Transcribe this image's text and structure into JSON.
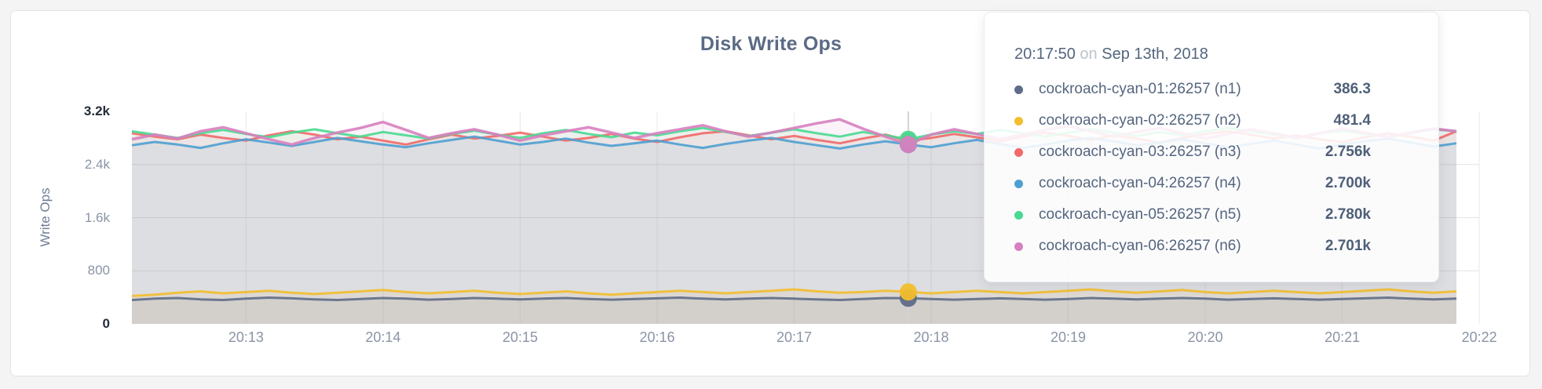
{
  "tooltip": {
    "time": "20:17:50",
    "connector": "on",
    "date": "Sep 13th, 2018",
    "rows": [
      {
        "label": "cockroach-cyan-01:26257 (n1)",
        "value": "386.3"
      },
      {
        "label": "cockroach-cyan-02:26257 (n2)",
        "value": "481.4"
      },
      {
        "label": "cockroach-cyan-03:26257 (n3)",
        "value": "2.756k"
      },
      {
        "label": "cockroach-cyan-04:26257 (n4)",
        "value": "2.700k"
      },
      {
        "label": "cockroach-cyan-05:26257 (n5)",
        "value": "2.780k"
      },
      {
        "label": "cockroach-cyan-06:26257 (n6)",
        "value": "2.701k"
      }
    ]
  },
  "chart_data": {
    "type": "line",
    "title": "Disk Write Ops",
    "xlabel": "",
    "ylabel": "Write Ops",
    "ylim": [
      0,
      3200
    ],
    "grid": true,
    "x_range": [
      "20:12:10",
      "20:21:50"
    ],
    "x_interval_seconds": 10,
    "y_ticks": [
      {
        "label": "0",
        "value": 0,
        "emphasis": true
      },
      {
        "label": "800",
        "value": 800
      },
      {
        "label": "1.6k",
        "value": 1600
      },
      {
        "label": "2.4k",
        "value": 2400
      },
      {
        "label": "3.2k",
        "value": 3200,
        "emphasis": true
      }
    ],
    "x_ticks": [
      "20:13",
      "20:14",
      "20:15",
      "20:16",
      "20:17",
      "20:18",
      "20:19",
      "20:20",
      "20:21",
      "20:22"
    ],
    "hover": {
      "index": 34,
      "time": "20:17:50"
    },
    "series": [
      {
        "id": "n1",
        "name": "cockroach-cyan-01:26257 (n1)",
        "color": "#5F6C87",
        "width": 3,
        "values": [
          360,
          380,
          390,
          370,
          360,
          380,
          395,
          385,
          370,
          360,
          375,
          390,
          380,
          365,
          375,
          390,
          380,
          370,
          380,
          390,
          375,
          365,
          375,
          385,
          395,
          380,
          370,
          380,
          390,
          380,
          370,
          360,
          375,
          390,
          386.3,
          375,
          365,
          375,
          385,
          375,
          365,
          375,
          390,
          380,
          370,
          380,
          390,
          380,
          365,
          375,
          385,
          375,
          365,
          375,
          385,
          395,
          380,
          370,
          380
        ]
      },
      {
        "id": "n2",
        "name": "cockroach-cyan-02:26257 (n2)",
        "color": "#F2BE2C",
        "width": 3,
        "values": [
          420,
          440,
          470,
          490,
          460,
          480,
          500,
          470,
          450,
          470,
          490,
          510,
          480,
          460,
          480,
          500,
          470,
          450,
          470,
          490,
          460,
          440,
          460,
          480,
          500,
          480,
          460,
          480,
          500,
          520,
          490,
          470,
          480,
          500,
          481.4,
          460,
          480,
          500,
          480,
          460,
          480,
          500,
          520,
          490,
          470,
          490,
          510,
          480,
          460,
          480,
          500,
          480,
          460,
          480,
          500,
          520,
          490,
          470,
          490
        ]
      },
      {
        "id": "n3",
        "name": "cockroach-cyan-03:26257 (n3)",
        "color": "#F16969",
        "width": 3,
        "values": [
          2870,
          2820,
          2780,
          2850,
          2800,
          2760,
          2840,
          2900,
          2850,
          2780,
          2820,
          2760,
          2700,
          2780,
          2850,
          2790,
          2830,
          2880,
          2820,
          2760,
          2800,
          2860,
          2790,
          2740,
          2810,
          2870,
          2900,
          2840,
          2780,
          2830,
          2770,
          2720,
          2790,
          2850,
          2756,
          2800,
          2860,
          2810,
          2750,
          2820,
          2880,
          2830,
          2770,
          2840,
          2790,
          2730,
          2800,
          2860,
          2900,
          2850,
          2790,
          2840,
          2780,
          2740,
          2810,
          2870,
          2820,
          2760,
          2900
        ]
      },
      {
        "id": "n4",
        "name": "cockroach-cyan-04:26257 (n4)",
        "color": "#4E9FD1",
        "width": 3,
        "values": [
          2690,
          2740,
          2700,
          2650,
          2720,
          2780,
          2730,
          2680,
          2740,
          2800,
          2750,
          2700,
          2660,
          2720,
          2770,
          2820,
          2760,
          2700,
          2740,
          2790,
          2730,
          2680,
          2720,
          2760,
          2700,
          2650,
          2710,
          2760,
          2800,
          2740,
          2690,
          2640,
          2700,
          2750,
          2700,
          2660,
          2720,
          2770,
          2710,
          2650,
          2700,
          2760,
          2800,
          2750,
          2690,
          2730,
          2780,
          2720,
          2660,
          2710,
          2760,
          2700,
          2640,
          2700,
          2750,
          2790,
          2730,
          2670,
          2720
        ]
      },
      {
        "id": "n5",
        "name": "cockroach-cyan-05:26257 (n5)",
        "color": "#49D990",
        "width": 3,
        "values": [
          2900,
          2850,
          2800,
          2870,
          2920,
          2860,
          2810,
          2880,
          2930,
          2870,
          2820,
          2890,
          2840,
          2790,
          2860,
          2910,
          2850,
          2800,
          2870,
          2920,
          2860,
          2810,
          2880,
          2840,
          2900,
          2950,
          2890,
          2830,
          2880,
          2930,
          2870,
          2820,
          2890,
          2840,
          2780,
          2850,
          2900,
          2860,
          2920,
          2870,
          2820,
          2880,
          2930,
          2880,
          2830,
          2890,
          2840,
          2900,
          2950,
          2900,
          2850,
          2800,
          2870,
          2910,
          2860,
          2820,
          2880,
          2930,
          2900
        ]
      },
      {
        "id": "n6",
        "name": "cockroach-cyan-06:26257 (n6)",
        "color": "#D77FBF",
        "width": 3.5,
        "values": [
          2780,
          2850,
          2790,
          2900,
          2960,
          2870,
          2780,
          2700,
          2800,
          2880,
          2950,
          3040,
          2920,
          2800,
          2870,
          2930,
          2850,
          2760,
          2840,
          2900,
          2960,
          2880,
          2800,
          2870,
          2930,
          2990,
          2900,
          2820,
          2880,
          2950,
          3020,
          3080,
          2940,
          2820,
          2701,
          2850,
          2930,
          2860,
          2780,
          2850,
          2920,
          2980,
          2900,
          2820,
          2890,
          2950,
          2870,
          2790,
          2860,
          2930,
          2870,
          2800,
          2870,
          2940,
          2880,
          2810,
          2880,
          2940,
          2900
        ]
      }
    ]
  }
}
